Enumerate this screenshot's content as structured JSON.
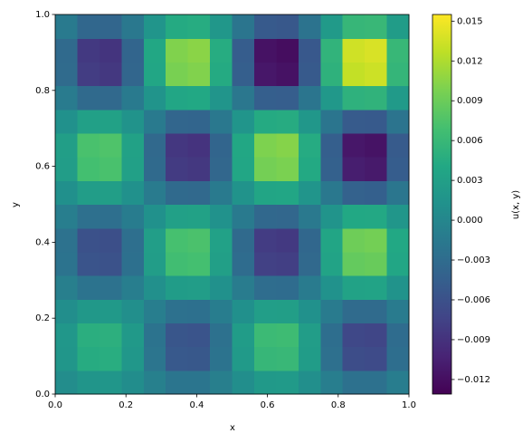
{
  "chart_data": {
    "type": "heatmap",
    "xlabel": "x",
    "ylabel": "y",
    "colorbar_label": "u(x, y)",
    "colormap": "viridis",
    "xlim": [
      0,
      1
    ],
    "ylim": [
      0,
      1
    ],
    "xticks": [
      {
        "value": 0,
        "label": "0.0"
      },
      0.2,
      0.4,
      0.6,
      0.8,
      {
        "value": 1,
        "label": "1.0"
      }
    ],
    "yticks": [
      {
        "value": 0,
        "label": "0.0"
      },
      0.2,
      0.4,
      0.6,
      0.8,
      {
        "value": 1,
        "label": "1.0"
      }
    ],
    "zlim": [
      -0.0131,
      0.0155
    ],
    "zticks": [
      {
        "value": -0.012,
        "label": "−0.012"
      },
      {
        "value": -0.009,
        "label": "−0.009"
      },
      {
        "value": -0.006,
        "label": "−0.006"
      },
      {
        "value": -0.003,
        "label": "−0.003"
      },
      {
        "value": 0,
        "label": "0.000"
      },
      0.003,
      0.006,
      0.009,
      0.012,
      0.015
    ],
    "z": [
      [
        0.0007,
        0.00174,
        0.0018,
        0.00077,
        -0.00079,
        -0.00198,
        -0.00204,
        -0.00087,
        0.00089,
        0.00221,
        0.00228,
        0.00097,
        -0.00099,
        -0.00245,
        -0.00251,
        -0.00106
      ],
      [
        0.00179,
        0.00449,
        0.00465,
        0.002,
        -0.00206,
        -0.00514,
        -0.0053,
        -0.00227,
        0.00233,
        0.00579,
        0.00596,
        0.00254,
        -0.00261,
        -0.00645,
        -0.00661,
        -0.00281
      ],
      [
        0.00191,
        0.00478,
        0.00497,
        0.00214,
        -0.00221,
        -0.00552,
        -0.0057,
        -0.00244,
        0.00252,
        0.00625,
        0.00644,
        0.00274,
        -0.00282,
        -0.00699,
        -0.00717,
        -0.00305
      ],
      [
        0.00084,
        0.0021,
        0.00219,
        0.00094,
        -0.00098,
        -0.00244,
        -0.00253,
        -0.00108,
        0.00112,
        0.00278,
        0.00286,
        0.00122,
        -0.00126,
        -0.00312,
        -0.0032,
        -0.00136
      ],
      [
        -0.00089,
        -0.00223,
        -0.00232,
        -0.001,
        0.00104,
        0.0026,
        0.0027,
        0.00116,
        -0.00119,
        -0.00297,
        -0.00307,
        -0.00131,
        0.00135,
        0.00334,
        0.00344,
        0.00146
      ],
      [
        -0.00225,
        -0.00568,
        -0.00592,
        -0.00255,
        0.00266,
        0.00665,
        0.00689,
        0.00296,
        -0.00306,
        -0.00762,
        -0.00787,
        -0.00336,
        0.00346,
        0.00859,
        0.00884,
        0.00376
      ],
      [
        -0.00237,
        -0.00597,
        -0.00623,
        -0.00269,
        0.0028,
        0.00703,
        0.00729,
        0.00313,
        -0.00324,
        -0.00808,
        -0.00834,
        -0.00357,
        0.00368,
        0.00913,
        0.0094,
        0.00401
      ],
      [
        -0.00103,
        -0.0026,
        -0.00272,
        -0.00117,
        0.00122,
        0.00307,
        0.00319,
        0.00137,
        -0.00142,
        -0.00354,
        -0.00365,
        -0.00156,
        0.00161,
        0.00401,
        0.00412,
        0.00176
      ],
      [
        0.00108,
        0.00272,
        0.00285,
        0.00123,
        -0.00129,
        -0.00323,
        -0.00335,
        -0.00144,
        0.00149,
        0.00373,
        0.00386,
        0.00165,
        -0.0017,
        -0.00423,
        -0.00436,
        -0.00186
      ],
      [
        0.00271,
        0.00686,
        0.00719,
        0.00311,
        -0.00325,
        -0.00816,
        -0.00848,
        -0.00365,
        0.00378,
        0.00945,
        0.00977,
        0.00418,
        -0.00432,
        -0.01074,
        -0.01107,
        -0.00472
      ],
      [
        0.00282,
        0.00716,
        0.0075,
        0.00325,
        -0.00339,
        -0.00853,
        -0.00888,
        -0.00382,
        0.00396,
        0.00991,
        0.01025,
        0.00439,
        -0.00453,
        -0.01128,
        -0.01163,
        -0.00496
      ],
      [
        0.00122,
        0.00309,
        0.00324,
        0.00141,
        -0.00147,
        -0.00369,
        -0.00384,
        -0.00166,
        0.00172,
        0.00429,
        0.00444,
        0.00191,
        -0.00197,
        -0.0049,
        -0.00505,
        -0.00216
      ],
      [
        -0.00127,
        -0.00322,
        -0.00337,
        -0.00147,
        0.00153,
        0.00385,
        0.00401,
        0.00173,
        -0.00179,
        -0.00449,
        -0.00465,
        -0.00199,
        0.00206,
        0.00512,
        0.00528,
        0.00226
      ],
      [
        -0.00317,
        -0.00805,
        -0.00845,
        -0.00367,
        0.00384,
        0.00966,
        0.01007,
        0.00434,
        -0.00451,
        -0.01128,
        -0.01168,
        -0.00501,
        0.00518,
        0.01289,
        0.01329,
        0.00568
      ],
      [
        -0.00328,
        -0.00835,
        -0.00877,
        -0.00381,
        0.00399,
        0.01004,
        0.01046,
        0.00451,
        -0.00469,
        -0.01174,
        -0.01216,
        -0.00522,
        0.00539,
        0.01343,
        0.01385,
        0.00592
      ],
      [
        -0.00141,
        -0.00358,
        -0.00377,
        -0.00164,
        0.00171,
        0.00432,
        0.0045,
        0.00194,
        -0.00202,
        -0.00505,
        -0.00524,
        -0.00225,
        0.00232,
        0.00579,
        0.00597,
        0.00255
      ]
    ]
  }
}
